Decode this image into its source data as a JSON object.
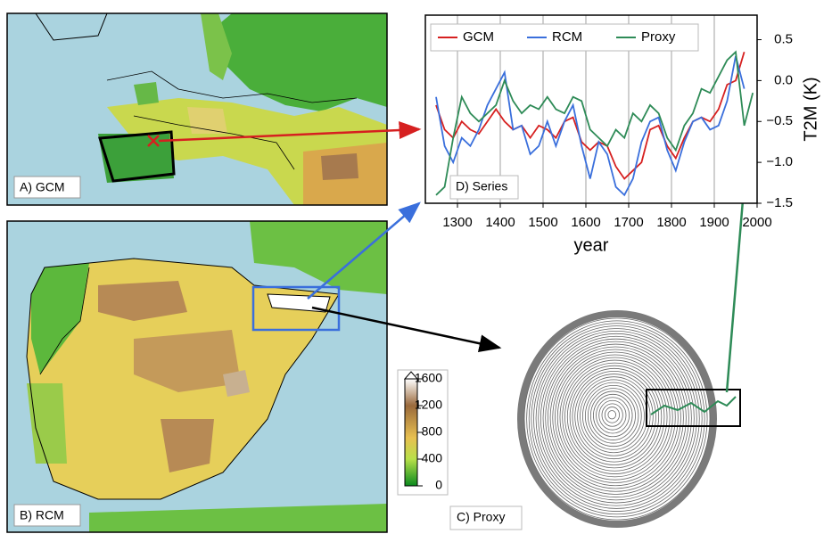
{
  "panels": {
    "a": "A) GCM",
    "b": "B) RCM",
    "c": "C) Proxy"
  },
  "colorbar": {
    "lim": [
      0,
      1600
    ],
    "ticks": [
      0,
      400,
      800,
      1200,
      1600
    ]
  },
  "chart_data": {
    "type": "line",
    "annotation": "D) Series",
    "x_label": "year",
    "y_label": "T2M (K)",
    "x": [
      1250,
      1270,
      1290,
      1310,
      1330,
      1350,
      1370,
      1390,
      1410,
      1430,
      1450,
      1470,
      1490,
      1510,
      1530,
      1550,
      1570,
      1590,
      1610,
      1630,
      1650,
      1670,
      1690,
      1710,
      1730,
      1750,
      1770,
      1790,
      1810,
      1830,
      1850,
      1870,
      1890,
      1910,
      1930,
      1950,
      1970,
      1990
    ],
    "series": [
      {
        "name": "GCM",
        "color": "#d62020",
        "values": [
          -0.3,
          -0.6,
          -0.7,
          -0.5,
          -0.6,
          -0.65,
          -0.5,
          -0.35,
          -0.5,
          -0.6,
          -0.55,
          -0.7,
          -0.55,
          -0.6,
          -0.7,
          -0.5,
          -0.45,
          -0.75,
          -0.85,
          -0.75,
          -0.8,
          -1.05,
          -1.2,
          -1.1,
          -1.0,
          -0.6,
          -0.55,
          -0.8,
          -0.95,
          -0.7,
          -0.5,
          -0.45,
          -0.5,
          -0.35,
          -0.05,
          0.0,
          0.35,
          null
        ]
      },
      {
        "name": "RCM",
        "color": "#3a6fdc",
        "values": [
          -0.2,
          -0.8,
          -1.0,
          -0.7,
          -0.8,
          -0.6,
          -0.3,
          -0.1,
          0.1,
          -0.6,
          -0.55,
          -0.9,
          -0.8,
          -0.5,
          -0.8,
          -0.5,
          -0.3,
          -0.8,
          -1.2,
          -0.75,
          -0.9,
          -1.3,
          -1.4,
          -1.2,
          -0.75,
          -0.5,
          -0.45,
          -0.85,
          -1.1,
          -0.75,
          -0.5,
          -0.45,
          -0.6,
          -0.55,
          -0.25,
          0.3,
          -0.1,
          null
        ]
      },
      {
        "name": "Proxy",
        "color": "#2e8b57",
        "values": [
          -1.4,
          -1.3,
          -0.7,
          -0.2,
          -0.4,
          -0.5,
          -0.4,
          -0.3,
          0.0,
          -0.25,
          -0.4,
          -0.3,
          -0.35,
          -0.2,
          -0.35,
          -0.4,
          -0.2,
          -0.25,
          -0.6,
          -0.7,
          -0.8,
          -0.6,
          -0.7,
          -0.4,
          -0.5,
          -0.3,
          -0.4,
          -0.7,
          -0.85,
          -0.55,
          -0.4,
          -0.1,
          -0.15,
          0.05,
          0.25,
          0.35,
          -0.55,
          -0.15
        ]
      }
    ],
    "xlim": [
      1225,
      2000
    ],
    "ylim": [
      -1.5,
      0.8
    ],
    "xticks": [
      1300,
      1400,
      1500,
      1600,
      1700,
      1800,
      1900,
      2000
    ],
    "yticks": [
      0.5,
      {
        "value": 0,
        "label": "0.0"
      },
      {
        "value": -0.5,
        "label": "−0.5"
      },
      {
        "value": -1,
        "label": "−1.0"
      },
      {
        "value": -1.5,
        "label": "−1.5"
      }
    ],
    "grid": true,
    "legend": "top-left"
  }
}
